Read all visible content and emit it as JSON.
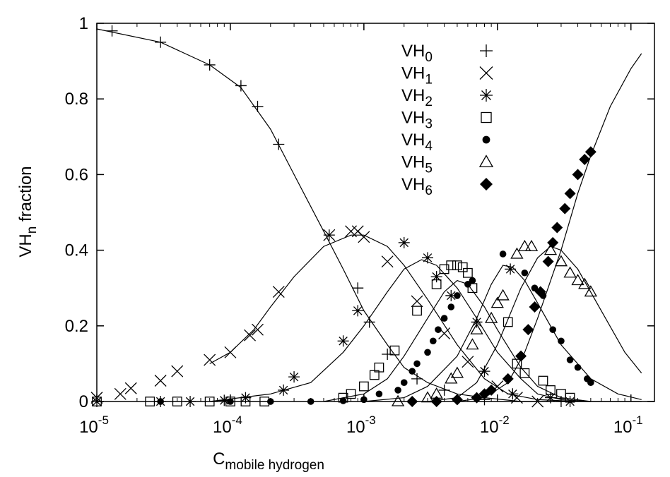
{
  "chart_data": {
    "type": "scatter",
    "xlabel": "C",
    "xlabel_subscript": "mobile hydrogen",
    "ylabel": "VH",
    "ylabel_subscript": "n",
    "ylabel_suffix": " fraction",
    "xscale": "log",
    "xlim": [
      1e-05,
      0.15
    ],
    "ylim": [
      0,
      1
    ],
    "x_ticks": [
      {
        "base": "10",
        "exp": "-5",
        "value": 1e-05
      },
      {
        "base": "10",
        "exp": "-4",
        "value": 0.0001
      },
      {
        "base": "10",
        "exp": "-3",
        "value": 0.001
      },
      {
        "base": "10",
        "exp": "-2",
        "value": 0.01
      },
      {
        "base": "10",
        "exp": "-1",
        "value": 0.1
      }
    ],
    "y_ticks": [
      {
        "label": "0",
        "value": 0
      },
      {
        "label": "0.2",
        "value": 0.2
      },
      {
        "label": "0.4",
        "value": 0.4
      },
      {
        "label": "0.6",
        "value": 0.6
      },
      {
        "label": "0.8",
        "value": 0.8
      },
      {
        "label": "1",
        "value": 1
      }
    ],
    "grid": false,
    "legend_position": "top-right",
    "series": [
      {
        "name": "VH",
        "sub": "0",
        "marker": "plus",
        "points": [
          [
            1.3e-05,
            0.98
          ],
          [
            3e-05,
            0.95
          ],
          [
            7e-05,
            0.89
          ],
          [
            0.00012,
            0.835
          ],
          [
            0.00016,
            0.78
          ],
          [
            0.00023,
            0.68
          ],
          [
            0.00055,
            0.44
          ],
          [
            0.0009,
            0.3
          ],
          [
            0.0011,
            0.21
          ],
          [
            0.0015,
            0.125
          ],
          [
            0.0025,
            0.06
          ],
          [
            0.004,
            0.03
          ],
          [
            0.008,
            0.005
          ],
          [
            0.03,
            0.0
          ]
        ]
      },
      {
        "name": "VH",
        "sub": "1",
        "marker": "cross",
        "points": [
          [
            1e-05,
            0.01
          ],
          [
            1.5e-05,
            0.02
          ],
          [
            1.8e-05,
            0.035
          ],
          [
            3e-05,
            0.055
          ],
          [
            4e-05,
            0.08
          ],
          [
            7e-05,
            0.11
          ],
          [
            0.0001,
            0.13
          ],
          [
            0.00014,
            0.175
          ],
          [
            0.00016,
            0.19
          ],
          [
            0.00023,
            0.29
          ],
          [
            0.00055,
            0.44
          ],
          [
            0.0008,
            0.45
          ],
          [
            0.0009,
            0.45
          ],
          [
            0.001,
            0.435
          ],
          [
            0.0015,
            0.37
          ],
          [
            0.0025,
            0.265
          ],
          [
            0.004,
            0.18
          ],
          [
            0.006,
            0.105
          ],
          [
            0.01,
            0.04
          ],
          [
            0.014,
            0.01
          ],
          [
            0.02,
            0.0
          ]
        ]
      },
      {
        "name": "VH",
        "sub": "2",
        "marker": "asterisk",
        "points": [
          [
            1e-05,
            0.0
          ],
          [
            3e-05,
            0.0
          ],
          [
            5e-05,
            0.0
          ],
          [
            9e-05,
            0.003
          ],
          [
            0.00013,
            0.01
          ],
          [
            0.00025,
            0.03
          ],
          [
            0.0003,
            0.065
          ],
          [
            0.0007,
            0.16
          ],
          [
            0.0009,
            0.24
          ],
          [
            0.002,
            0.42
          ],
          [
            0.003,
            0.38
          ],
          [
            0.0035,
            0.33
          ],
          [
            0.0045,
            0.28
          ],
          [
            0.007,
            0.21
          ],
          [
            0.008,
            0.08
          ],
          [
            0.0125,
            0.35
          ],
          [
            0.013,
            0.02
          ],
          [
            0.025,
            0.01
          ],
          [
            0.035,
            0.0
          ]
        ]
      },
      {
        "name": "VH",
        "sub": "3",
        "marker": "square",
        "points": [
          [
            1e-05,
            0.0
          ],
          [
            2.5e-05,
            0.0
          ],
          [
            4e-05,
            0.0
          ],
          [
            7e-05,
            0.0
          ],
          [
            0.0001,
            0.0
          ],
          [
            0.00013,
            0.0
          ],
          [
            0.00018,
            0.0
          ],
          [
            0.0007,
            0.01
          ],
          [
            0.0008,
            0.02
          ],
          [
            0.001,
            0.04
          ],
          [
            0.0012,
            0.07
          ],
          [
            0.0013,
            0.09
          ],
          [
            0.0017,
            0.135
          ],
          [
            0.0025,
            0.24
          ],
          [
            0.0035,
            0.31
          ],
          [
            0.004,
            0.35
          ],
          [
            0.0045,
            0.36
          ],
          [
            0.005,
            0.36
          ],
          [
            0.0055,
            0.355
          ],
          [
            0.006,
            0.34
          ],
          [
            0.0065,
            0.3
          ],
          [
            0.012,
            0.21
          ],
          [
            0.014,
            0.1
          ],
          [
            0.016,
            0.075
          ],
          [
            0.022,
            0.055
          ],
          [
            0.025,
            0.03
          ],
          [
            0.03,
            0.02
          ],
          [
            0.035,
            0.01
          ]
        ]
      },
      {
        "name": "VH",
        "sub": "4",
        "marker": "filled-circle",
        "points": [
          [
            3e-05,
            0.0
          ],
          [
            0.0001,
            0.0
          ],
          [
            0.0002,
            0.0
          ],
          [
            0.0004,
            0.0
          ],
          [
            0.0007,
            0.002
          ],
          [
            0.001,
            0.005
          ],
          [
            0.0013,
            0.02
          ],
          [
            0.0018,
            0.03
          ],
          [
            0.002,
            0.05
          ],
          [
            0.0023,
            0.08
          ],
          [
            0.0025,
            0.1
          ],
          [
            0.003,
            0.13
          ],
          [
            0.0033,
            0.16
          ],
          [
            0.0036,
            0.19
          ],
          [
            0.004,
            0.22
          ],
          [
            0.0045,
            0.25
          ],
          [
            0.005,
            0.28
          ],
          [
            0.006,
            0.31
          ],
          [
            0.0065,
            0.32
          ],
          [
            0.011,
            0.39
          ],
          [
            0.016,
            0.34
          ],
          [
            0.019,
            0.3
          ],
          [
            0.022,
            0.28
          ],
          [
            0.026,
            0.19
          ],
          [
            0.03,
            0.16
          ],
          [
            0.035,
            0.11
          ],
          [
            0.04,
            0.09
          ],
          [
            0.047,
            0.06
          ],
          [
            0.05,
            0.05
          ]
        ]
      },
      {
        "name": "VH",
        "sub": "5",
        "marker": "triangle",
        "points": [
          [
            0.0018,
            0.0
          ],
          [
            0.003,
            0.01
          ],
          [
            0.0035,
            0.02
          ],
          [
            0.0045,
            0.06
          ],
          [
            0.005,
            0.075
          ],
          [
            0.0065,
            0.15
          ],
          [
            0.007,
            0.19
          ],
          [
            0.009,
            0.22
          ],
          [
            0.01,
            0.26
          ],
          [
            0.011,
            0.28
          ],
          [
            0.014,
            0.39
          ],
          [
            0.016,
            0.41
          ],
          [
            0.018,
            0.41
          ],
          [
            0.025,
            0.4
          ],
          [
            0.03,
            0.37
          ],
          [
            0.035,
            0.34
          ],
          [
            0.04,
            0.32
          ],
          [
            0.045,
            0.31
          ],
          [
            0.05,
            0.29
          ]
        ]
      },
      {
        "name": "VH",
        "sub": "6",
        "marker": "filled-diamond",
        "points": [
          [
            0.0023,
            0.0
          ],
          [
            0.0035,
            0.0
          ],
          [
            0.005,
            0.005
          ],
          [
            0.007,
            0.01
          ],
          [
            0.008,
            0.02
          ],
          [
            0.009,
            0.03
          ],
          [
            0.012,
            0.06
          ],
          [
            0.015,
            0.12
          ],
          [
            0.017,
            0.19
          ],
          [
            0.019,
            0.25
          ],
          [
            0.021,
            0.29
          ],
          [
            0.024,
            0.37
          ],
          [
            0.026,
            0.42
          ],
          [
            0.028,
            0.46
          ],
          [
            0.032,
            0.51
          ],
          [
            0.035,
            0.55
          ],
          [
            0.04,
            0.6
          ],
          [
            0.045,
            0.64
          ],
          [
            0.05,
            0.66
          ]
        ]
      }
    ],
    "fit_curves": [
      {
        "points": [
          [
            1e-05,
            0.985
          ],
          [
            3e-05,
            0.95
          ],
          [
            7e-05,
            0.89
          ],
          [
            0.00012,
            0.83
          ],
          [
            0.0002,
            0.72
          ],
          [
            0.0003,
            0.6
          ],
          [
            0.0005,
            0.45
          ],
          [
            0.0007,
            0.35
          ],
          [
            0.001,
            0.24
          ],
          [
            0.0015,
            0.15
          ],
          [
            0.002,
            0.09
          ],
          [
            0.003,
            0.05
          ],
          [
            0.005,
            0.02
          ],
          [
            0.008,
            0.01
          ],
          [
            0.015,
            0.0
          ],
          [
            0.12,
            0.0
          ]
        ]
      },
      {
        "points": [
          [
            7e-05,
            0.1
          ],
          [
            0.0001,
            0.13
          ],
          [
            0.00015,
            0.19
          ],
          [
            0.0002,
            0.25
          ],
          [
            0.0003,
            0.33
          ],
          [
            0.0005,
            0.41
          ],
          [
            0.0008,
            0.44
          ],
          [
            0.001,
            0.44
          ],
          [
            0.0015,
            0.41
          ],
          [
            0.002,
            0.36
          ],
          [
            0.003,
            0.27
          ],
          [
            0.005,
            0.15
          ],
          [
            0.008,
            0.06
          ],
          [
            0.012,
            0.02
          ],
          [
            0.02,
            0.005
          ],
          [
            0.04,
            0.0
          ]
        ]
      },
      {
        "points": [
          [
            7e-05,
            0.0
          ],
          [
            0.0002,
            0.02
          ],
          [
            0.0004,
            0.05
          ],
          [
            0.0007,
            0.13
          ],
          [
            0.001,
            0.2
          ],
          [
            0.0015,
            0.29
          ],
          [
            0.002,
            0.35
          ],
          [
            0.0027,
            0.375
          ],
          [
            0.0035,
            0.36
          ],
          [
            0.005,
            0.3
          ],
          [
            0.007,
            0.22
          ],
          [
            0.01,
            0.13
          ],
          [
            0.015,
            0.06
          ],
          [
            0.02,
            0.02
          ],
          [
            0.03,
            0.005
          ],
          [
            0.05,
            0.0
          ]
        ]
      },
      {
        "points": [
          [
            0.0005,
            0.0
          ],
          [
            0.001,
            0.02
          ],
          [
            0.0015,
            0.06
          ],
          [
            0.002,
            0.12
          ],
          [
            0.003,
            0.22
          ],
          [
            0.004,
            0.29
          ],
          [
            0.005,
            0.32
          ],
          [
            0.006,
            0.31
          ],
          [
            0.008,
            0.25
          ],
          [
            0.01,
            0.19
          ],
          [
            0.015,
            0.09
          ],
          [
            0.02,
            0.04
          ],
          [
            0.03,
            0.01
          ],
          [
            0.05,
            0.0
          ]
        ]
      },
      {
        "points": [
          [
            0.001,
            0.0
          ],
          [
            0.002,
            0.01
          ],
          [
            0.003,
            0.04
          ],
          [
            0.005,
            0.12
          ],
          [
            0.007,
            0.22
          ],
          [
            0.009,
            0.31
          ],
          [
            0.011,
            0.36
          ],
          [
            0.013,
            0.355
          ],
          [
            0.016,
            0.32
          ],
          [
            0.02,
            0.26
          ],
          [
            0.03,
            0.15
          ],
          [
            0.05,
            0.06
          ],
          [
            0.08,
            0.02
          ],
          [
            0.12,
            0.005
          ]
        ]
      },
      {
        "points": [
          [
            0.003,
            0.0
          ],
          [
            0.005,
            0.01
          ],
          [
            0.007,
            0.05
          ],
          [
            0.01,
            0.15
          ],
          [
            0.015,
            0.3
          ],
          [
            0.02,
            0.38
          ],
          [
            0.025,
            0.41
          ],
          [
            0.03,
            0.4
          ],
          [
            0.04,
            0.35
          ],
          [
            0.06,
            0.24
          ],
          [
            0.09,
            0.13
          ],
          [
            0.12,
            0.075
          ]
        ]
      },
      {
        "points": [
          [
            0.005,
            0.0
          ],
          [
            0.008,
            0.01
          ],
          [
            0.012,
            0.05
          ],
          [
            0.016,
            0.13
          ],
          [
            0.02,
            0.22
          ],
          [
            0.03,
            0.4
          ],
          [
            0.04,
            0.55
          ],
          [
            0.05,
            0.65
          ],
          [
            0.07,
            0.78
          ],
          [
            0.1,
            0.88
          ],
          [
            0.12,
            0.92
          ]
        ]
      }
    ]
  }
}
